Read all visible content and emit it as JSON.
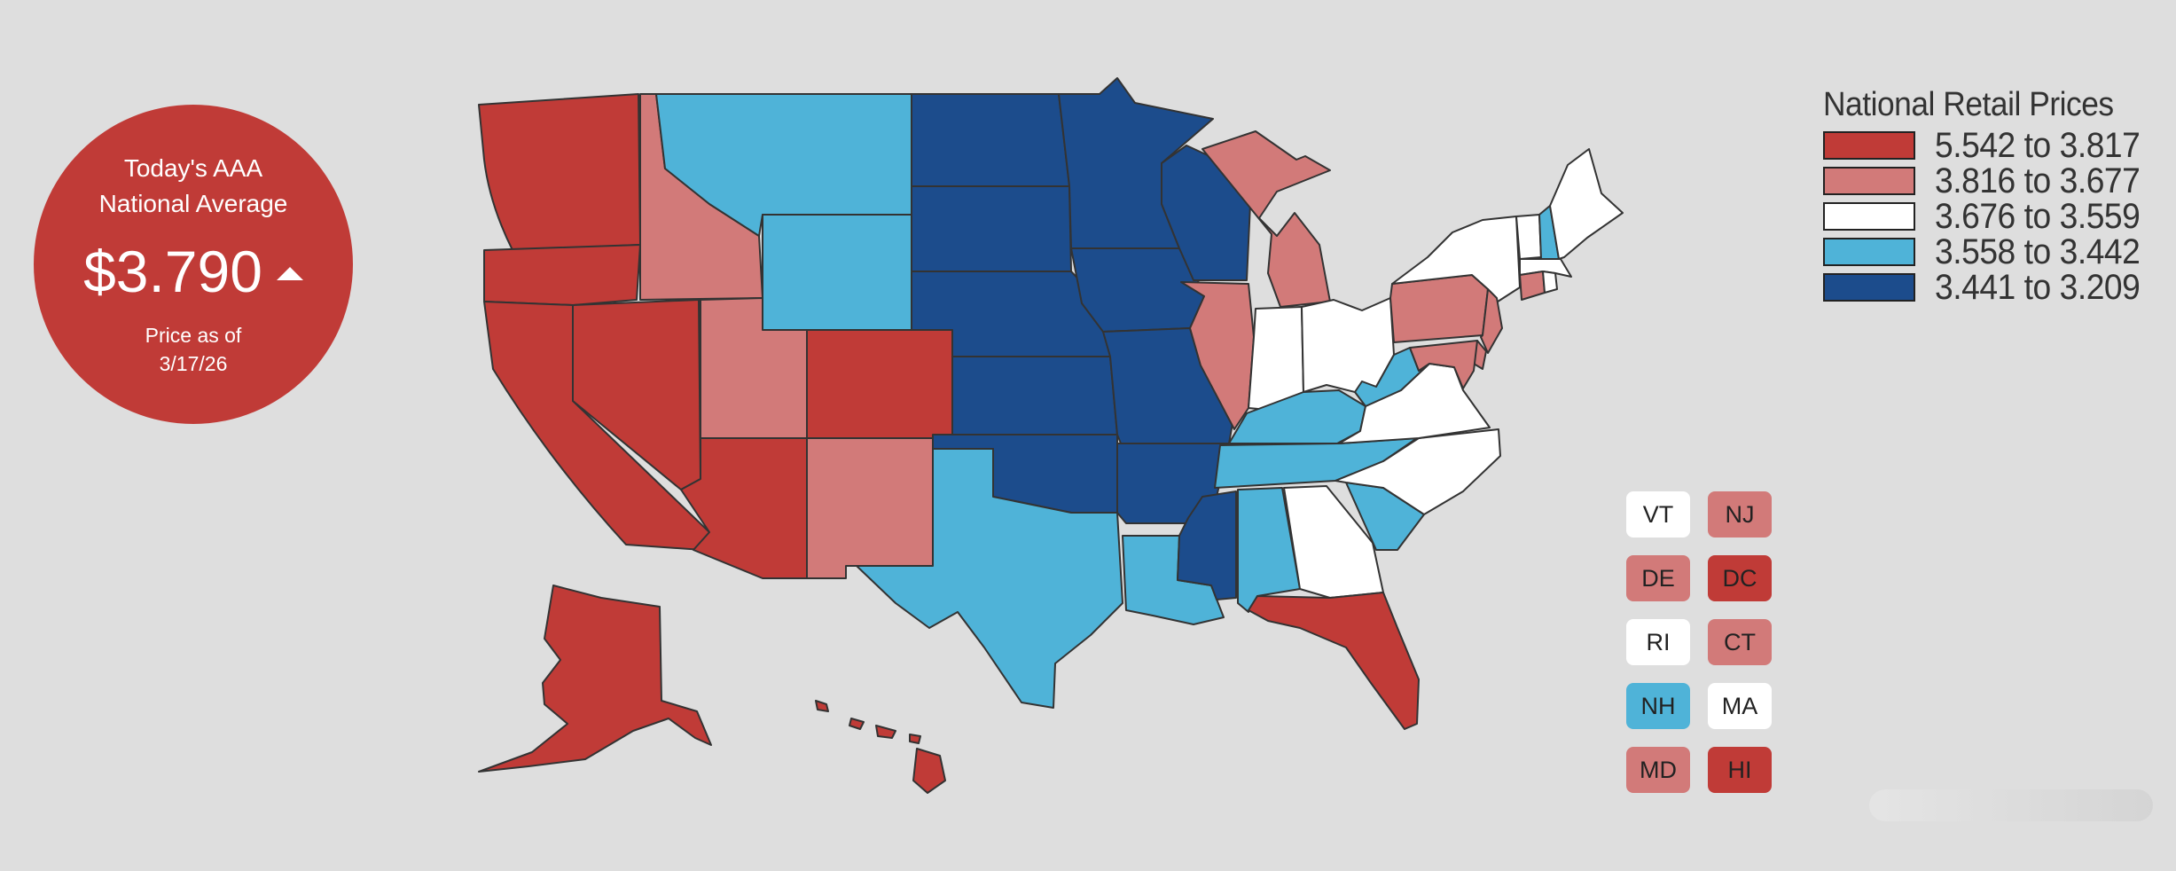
{
  "badge": {
    "line1": "Today's AAA",
    "line2": "National Average",
    "price": "$3.790",
    "trend": "up",
    "asof1": "Price as of",
    "asof2": "3/17/26"
  },
  "legend": {
    "title": "National Retail Prices",
    "bins": [
      {
        "label": "5.542 to 3.817",
        "color": "#c03b37"
      },
      {
        "label": "3.816 to 3.677",
        "color": "#d27a79"
      },
      {
        "label": "3.676 to 3.559",
        "color": "#ffffff"
      },
      {
        "label": "3.558 to 3.442",
        "color": "#4fb3d8"
      },
      {
        "label": "3.441 to 3.209",
        "color": "#1c4c8c"
      }
    ]
  },
  "small_states": [
    {
      "code": "VT",
      "bin": 2
    },
    {
      "code": "NJ",
      "bin": 1
    },
    {
      "code": "DE",
      "bin": 1
    },
    {
      "code": "DC",
      "bin": 0
    },
    {
      "code": "RI",
      "bin": 2
    },
    {
      "code": "CT",
      "bin": 1
    },
    {
      "code": "NH",
      "bin": 3
    },
    {
      "code": "MA",
      "bin": 2
    },
    {
      "code": "MD",
      "bin": 1
    },
    {
      "code": "HI",
      "bin": 0
    }
  ],
  "map_states": [
    {
      "code": "WA",
      "bin": 0
    },
    {
      "code": "OR",
      "bin": 0
    },
    {
      "code": "CA",
      "bin": 0
    },
    {
      "code": "NV",
      "bin": 0
    },
    {
      "code": "AZ",
      "bin": 0
    },
    {
      "code": "CO",
      "bin": 0
    },
    {
      "code": "AK",
      "bin": 0
    },
    {
      "code": "HI",
      "bin": 0
    },
    {
      "code": "FL",
      "bin": 0
    },
    {
      "code": "ID",
      "bin": 1
    },
    {
      "code": "UT",
      "bin": 1
    },
    {
      "code": "NM",
      "bin": 1
    },
    {
      "code": "IL",
      "bin": 1
    },
    {
      "code": "MI",
      "bin": 1
    },
    {
      "code": "PA",
      "bin": 1
    },
    {
      "code": "NJ",
      "bin": 1
    },
    {
      "code": "DE",
      "bin": 1
    },
    {
      "code": "MD",
      "bin": 1
    },
    {
      "code": "CT",
      "bin": 1
    },
    {
      "code": "IN",
      "bin": 2
    },
    {
      "code": "OH",
      "bin": 2
    },
    {
      "code": "NY",
      "bin": 2
    },
    {
      "code": "VA",
      "bin": 2
    },
    {
      "code": "NC",
      "bin": 2
    },
    {
      "code": "GA",
      "bin": 2
    },
    {
      "code": "ME",
      "bin": 2
    },
    {
      "code": "VT",
      "bin": 2
    },
    {
      "code": "MA",
      "bin": 2
    },
    {
      "code": "RI",
      "bin": 2
    },
    {
      "code": "MT",
      "bin": 3
    },
    {
      "code": "WY",
      "bin": 3
    },
    {
      "code": "TX",
      "bin": 3
    },
    {
      "code": "LA",
      "bin": 3
    },
    {
      "code": "AL",
      "bin": 3
    },
    {
      "code": "SC",
      "bin": 3
    },
    {
      "code": "TN",
      "bin": 3
    },
    {
      "code": "KY",
      "bin": 3
    },
    {
      "code": "WV",
      "bin": 3
    },
    {
      "code": "NH",
      "bin": 3
    },
    {
      "code": "ND",
      "bin": 4
    },
    {
      "code": "SD",
      "bin": 4
    },
    {
      "code": "NE",
      "bin": 4
    },
    {
      "code": "KS",
      "bin": 4
    },
    {
      "code": "OK",
      "bin": 4
    },
    {
      "code": "MN",
      "bin": 4
    },
    {
      "code": "IA",
      "bin": 4
    },
    {
      "code": "MO",
      "bin": 4
    },
    {
      "code": "AR",
      "bin": 4
    },
    {
      "code": "WI",
      "bin": 4
    },
    {
      "code": "MS",
      "bin": 4
    }
  ]
}
